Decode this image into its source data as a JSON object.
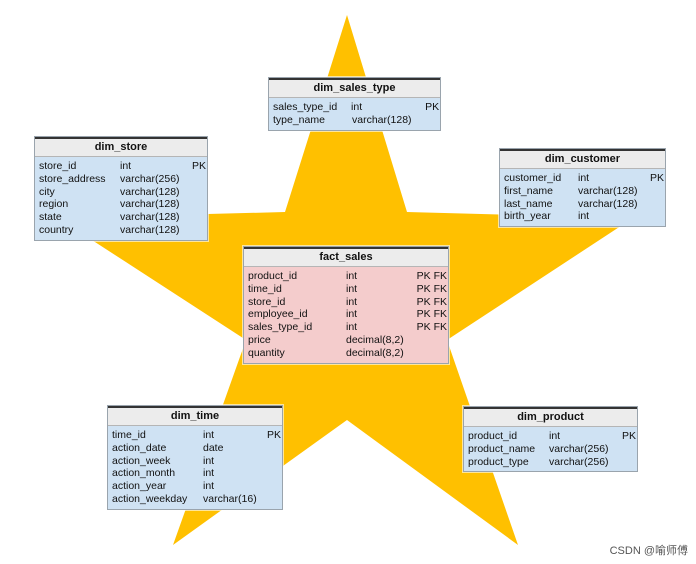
{
  "colors": {
    "star": "#ffc000",
    "dim_body": "#cfe2f3",
    "fact_body": "#f4cccc",
    "title_bar": "#ececec"
  },
  "tables": {
    "dim_sales_type": {
      "title": "dim_sales_type",
      "rows": [
        {
          "name": "sales_type_id",
          "type": "int",
          "key": "PK"
        },
        {
          "name": "type_name",
          "type": "varchar(128)",
          "key": ""
        }
      ]
    },
    "dim_store": {
      "title": "dim_store",
      "rows": [
        {
          "name": "store_id",
          "type": "int",
          "key": "PK"
        },
        {
          "name": "store_address",
          "type": "varchar(256)",
          "key": ""
        },
        {
          "name": "city",
          "type": "varchar(128)",
          "key": ""
        },
        {
          "name": "region",
          "type": "varchar(128)",
          "key": ""
        },
        {
          "name": "state",
          "type": "varchar(128)",
          "key": ""
        },
        {
          "name": "country",
          "type": "varchar(128)",
          "key": ""
        }
      ]
    },
    "dim_customer": {
      "title": "dim_customer",
      "rows": [
        {
          "name": "customer_id",
          "type": "int",
          "key": "PK"
        },
        {
          "name": "first_name",
          "type": "varchar(128)",
          "key": ""
        },
        {
          "name": "last_name",
          "type": "varchar(128)",
          "key": ""
        },
        {
          "name": "birth_year",
          "type": "int",
          "key": ""
        }
      ]
    },
    "fact_sales": {
      "title": "fact_sales",
      "rows": [
        {
          "name": "product_id",
          "type": "int",
          "key": "PK FK"
        },
        {
          "name": "time_id",
          "type": "int",
          "key": "PK FK"
        },
        {
          "name": "store_id",
          "type": "int",
          "key": "PK FK"
        },
        {
          "name": "employee_id",
          "type": "int",
          "key": "PK FK"
        },
        {
          "name": "sales_type_id",
          "type": "int",
          "key": "PK FK"
        },
        {
          "name": "price",
          "type": "decimal(8,2)",
          "key": ""
        },
        {
          "name": "quantity",
          "type": "decimal(8,2)",
          "key": ""
        }
      ]
    },
    "dim_time": {
      "title": "dim_time",
      "rows": [
        {
          "name": "time_id",
          "type": "int",
          "key": "PK"
        },
        {
          "name": "action_date",
          "type": "date",
          "key": ""
        },
        {
          "name": "action_week",
          "type": "int",
          "key": ""
        },
        {
          "name": "action_month",
          "type": "int",
          "key": ""
        },
        {
          "name": "action_year",
          "type": "int",
          "key": ""
        },
        {
          "name": "action_weekday",
          "type": "varchar(16)",
          "key": ""
        }
      ]
    },
    "dim_product": {
      "title": "dim_product",
      "rows": [
        {
          "name": "product_id",
          "type": "int",
          "key": "PK"
        },
        {
          "name": "product_name",
          "type": "varchar(256)",
          "key": ""
        },
        {
          "name": "product_type",
          "type": "varchar(256)",
          "key": ""
        }
      ]
    }
  },
  "watermark": "CSDN @喻师傅"
}
